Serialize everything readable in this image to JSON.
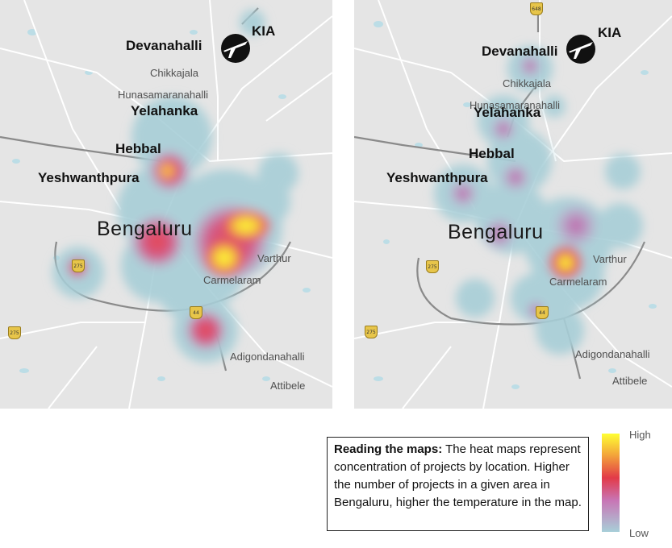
{
  "maps": {
    "left": {
      "kia": "KIA",
      "devanahalli": "Devanahalli",
      "chikkajala": "Chikkajala",
      "hunasamaranahalli": "Hunasamaranahalli",
      "yelahanka": "Yelahanka",
      "hebbal": "Hebbal",
      "yeshwanthpura": "Yeshwanthpura",
      "bengaluru": "Bengaluru",
      "varthur": "Varthur",
      "carmelaram": "Carmelaram",
      "adigondanahalli": "Adigondanahalli",
      "attibele": "Attibele",
      "shield_275": "275",
      "shield_44": "44"
    },
    "right": {
      "kia": "KIA",
      "devanahalli": "Devanahalli",
      "chikkajala": "Chikkajala",
      "hunasamaranahalli": "Hunasamaranahalli",
      "yelahanka": "Yelahanka",
      "hebbal": "Hebbal",
      "yeshwanthpura": "Yeshwanthpura",
      "bengaluru": "Bengaluru",
      "varthur": "Varthur",
      "carmelaram": "Carmelaram",
      "adigondanahalli": "Adigondanahalli",
      "attibele": "Attibele",
      "shield_275": "275",
      "shield_44": "44",
      "shield_648": "648"
    }
  },
  "legend": {
    "title": "Reading the maps:",
    "text": " The heat maps represent concentration of projects by location. Higher the number of projects in a given area in Bengaluru, higher the temperature in the map.",
    "high": "High",
    "low": "Low"
  },
  "colors": {
    "low": "#a8cfd8",
    "mid": "#c875b5",
    "warm": "#e23a48",
    "high": "#ffff33",
    "map_bg": "#e5e5e5",
    "road": "#ffffff",
    "highway": "#8a8a8a"
  }
}
